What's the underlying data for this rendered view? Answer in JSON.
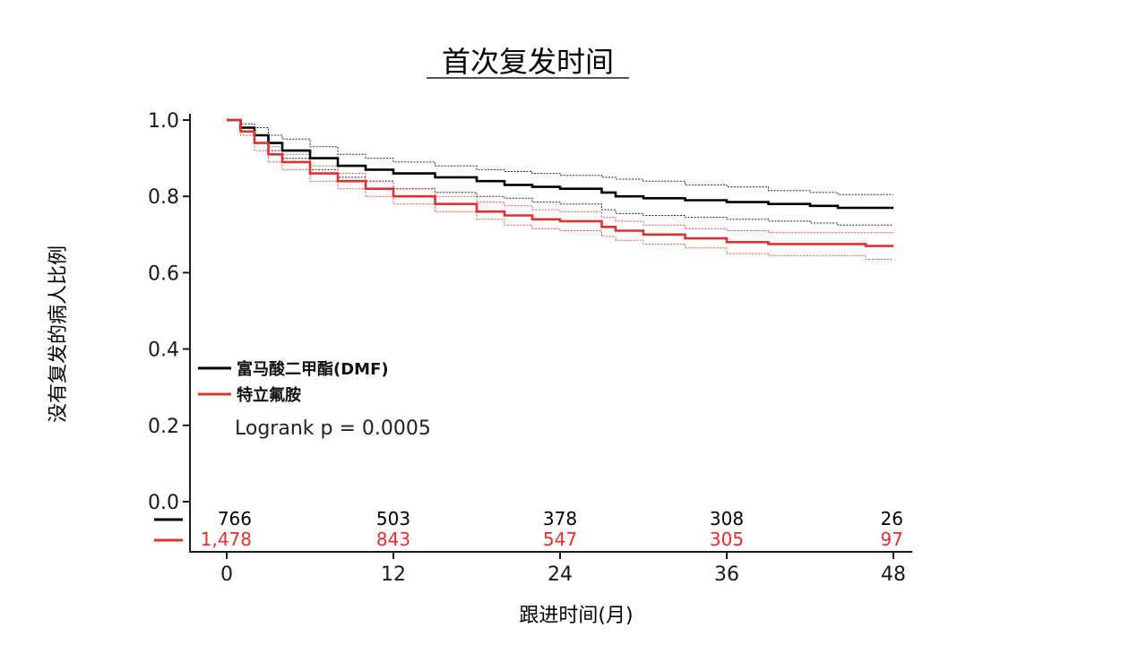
{
  "chart_data": {
    "type": "line",
    "title": "首次复发时间",
    "xlabel": "跟进时间(月)",
    "ylabel": "没有复发的病人比例",
    "xlim": [
      0,
      48
    ],
    "ylim": [
      0.0,
      1.0
    ],
    "x_ticks": [
      "0",
      "12",
      "24",
      "36",
      "48"
    ],
    "y_ticks": [
      "0.0",
      "0.2",
      "0.4",
      "0.6",
      "0.8",
      "1.0"
    ],
    "grid": false,
    "legend_position": "lower-left",
    "annotation": "Logrank p = 0.0005",
    "series": [
      {
        "name": "富马酸二甲酯(DMF)",
        "color": "#000000",
        "x": [
          0,
          1,
          2,
          3,
          4,
          6,
          8,
          10,
          12,
          15,
          18,
          20,
          22,
          24,
          27,
          28,
          30,
          33,
          36,
          39,
          42,
          44,
          46,
          48
        ],
        "y": [
          1.0,
          0.98,
          0.96,
          0.94,
          0.92,
          0.9,
          0.88,
          0.87,
          0.86,
          0.85,
          0.84,
          0.83,
          0.825,
          0.82,
          0.81,
          0.8,
          0.795,
          0.79,
          0.785,
          0.78,
          0.775,
          0.77,
          0.77,
          0.77
        ],
        "ci_upper": [
          1.0,
          0.99,
          0.98,
          0.96,
          0.95,
          0.93,
          0.91,
          0.9,
          0.89,
          0.88,
          0.87,
          0.865,
          0.86,
          0.855,
          0.85,
          0.845,
          0.84,
          0.83,
          0.825,
          0.815,
          0.81,
          0.805,
          0.805,
          0.805
        ],
        "ci_lower": [
          1.0,
          0.97,
          0.94,
          0.92,
          0.9,
          0.87,
          0.85,
          0.84,
          0.82,
          0.81,
          0.8,
          0.795,
          0.785,
          0.78,
          0.765,
          0.755,
          0.75,
          0.745,
          0.74,
          0.735,
          0.73,
          0.725,
          0.725,
          0.725
        ]
      },
      {
        "name": "特立氟胺",
        "color": "#e03030",
        "x": [
          0,
          1,
          2,
          3,
          4,
          6,
          8,
          10,
          12,
          15,
          18,
          20,
          22,
          24,
          27,
          28,
          30,
          33,
          36,
          39,
          42,
          44,
          46,
          48
        ],
        "y": [
          1.0,
          0.97,
          0.94,
          0.91,
          0.89,
          0.86,
          0.84,
          0.82,
          0.8,
          0.78,
          0.76,
          0.75,
          0.74,
          0.735,
          0.72,
          0.71,
          0.7,
          0.69,
          0.68,
          0.675,
          0.675,
          0.675,
          0.67,
          0.67
        ],
        "ci_upper": [
          1.0,
          0.98,
          0.96,
          0.93,
          0.91,
          0.88,
          0.86,
          0.84,
          0.82,
          0.8,
          0.785,
          0.775,
          0.765,
          0.76,
          0.745,
          0.735,
          0.725,
          0.715,
          0.71,
          0.705,
          0.705,
          0.705,
          0.705,
          0.705
        ],
        "ci_lower": [
          1.0,
          0.96,
          0.92,
          0.89,
          0.87,
          0.84,
          0.82,
          0.8,
          0.78,
          0.76,
          0.74,
          0.725,
          0.715,
          0.71,
          0.695,
          0.685,
          0.675,
          0.665,
          0.65,
          0.645,
          0.645,
          0.645,
          0.635,
          0.635
        ]
      }
    ],
    "at_risk": {
      "times": [
        0,
        12,
        24,
        36,
        48
      ],
      "rows": [
        {
          "color": "#000000",
          "labels": [
            "766",
            "503",
            "378",
            "308",
            "26"
          ]
        },
        {
          "color": "#e03030",
          "labels": [
            "1,478",
            "843",
            "547",
            "305",
            "97"
          ]
        }
      ]
    }
  }
}
